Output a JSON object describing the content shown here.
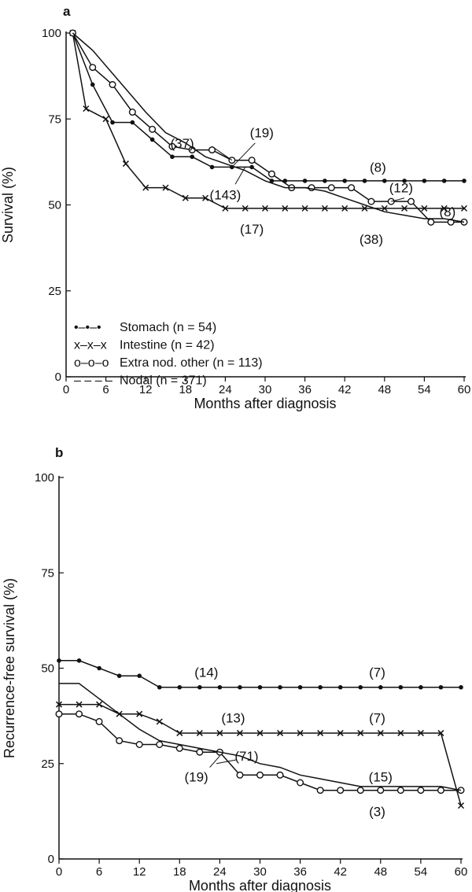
{
  "chart_data": [
    {
      "type": "line",
      "panel_label": "a",
      "xlabel": "Months after diagnosis",
      "ylabel": "Survival (%)",
      "xlim": [
        0,
        60
      ],
      "ylim": [
        0,
        100
      ],
      "xticks": [
        0,
        6,
        12,
        18,
        24,
        30,
        36,
        42,
        48,
        54,
        60
      ],
      "xtick_labels": [
        "0",
        "6",
        "12",
        "18",
        "24",
        "30",
        "36",
        "42",
        "48",
        "54",
        "60"
      ],
      "yticks": [
        0,
        25,
        50,
        75,
        100
      ],
      "ytick_labels": [
        "0",
        "25",
        "50",
        "75",
        "100"
      ],
      "grid": false,
      "legend": {
        "placement": "bottom-left",
        "entries": [
          {
            "marker_text": "•–•–•",
            "series": "Stomach",
            "n_text": "(n = 54)"
          },
          {
            "marker_text": "x–x–x",
            "series": "Intestine",
            "n_text": "(n = 42)"
          },
          {
            "marker_text": "o–o–o",
            "series": "Extra nod. other",
            "n_text": "(n = 113)"
          },
          {
            "marker_text": "– – – –",
            "series": "Nodal",
            "n_text": "(n = 371)"
          }
        ]
      },
      "series": [
        {
          "name": "Stomach",
          "marker": "dot",
          "x": [
            1,
            4,
            7,
            10,
            13,
            16,
            19,
            22,
            25,
            28,
            31,
            33,
            36,
            39,
            42,
            45,
            48,
            51,
            54,
            57,
            60
          ],
          "y": [
            100,
            85,
            74,
            74,
            69,
            64,
            64,
            61,
            61,
            61,
            57,
            57,
            57,
            57,
            57,
            57,
            57,
            57,
            57,
            57,
            57
          ]
        },
        {
          "name": "Intestine",
          "marker": "x",
          "x": [
            1,
            3,
            6,
            9,
            12,
            15,
            18,
            21,
            24,
            27,
            30,
            33,
            36,
            39,
            42,
            45,
            48,
            51,
            54,
            57,
            60
          ],
          "y": [
            100,
            78,
            75,
            62,
            55,
            55,
            52,
            52,
            49,
            49,
            49,
            49,
            49,
            49,
            49,
            49,
            49,
            49,
            49,
            49,
            49
          ]
        },
        {
          "name": "Extra nod. other",
          "marker": "circle",
          "x": [
            1,
            4,
            7,
            10,
            13,
            16,
            19,
            22,
            25,
            28,
            31,
            34,
            37,
            40,
            43,
            46,
            49,
            52,
            55,
            58,
            60
          ],
          "y": [
            100,
            90,
            85,
            77,
            72,
            67,
            66,
            66,
            63,
            63,
            59,
            55,
            55,
            55,
            55,
            51,
            51,
            51,
            45,
            45,
            45
          ]
        },
        {
          "name": "Nodal",
          "marker": "none",
          "x": [
            1,
            4,
            8,
            12,
            15,
            18,
            21,
            24,
            27,
            30,
            33,
            36,
            39,
            42,
            45,
            48,
            51,
            54,
            57,
            60
          ],
          "y": [
            100,
            95,
            86,
            77,
            71,
            68,
            64,
            62,
            60,
            57,
            55,
            55,
            54,
            52,
            50,
            48,
            47,
            46,
            46,
            45
          ]
        }
      ],
      "annotations": [
        {
          "text": "(37)",
          "x": 17.5,
          "y": 68,
          "leader": {
            "from": [
              22,
              67
            ],
            "to": [
              25,
              63
            ]
          }
        },
        {
          "text": "(19)",
          "x": 29.5,
          "y": 71,
          "leader": {
            "from": [
              28.5,
              68
            ],
            "to": [
              25,
              61
            ]
          }
        },
        {
          "text": "(143)",
          "x": 24,
          "y": 53,
          "leader": {
            "from": [
              25.5,
              56
            ],
            "to": [
              27,
              61
            ]
          }
        },
        {
          "text": "(8)",
          "x": 47,
          "y": 61
        },
        {
          "text": "(12)",
          "x": 50.5,
          "y": 55,
          "leader": {
            "from": [
              51,
              52
            ],
            "to": [
              49,
              51
            ]
          }
        },
        {
          "text": "(8)",
          "x": 57.5,
          "y": 48
        },
        {
          "text": "(17)",
          "x": 28,
          "y": 43
        },
        {
          "text": "(38)",
          "x": 46,
          "y": 40
        }
      ]
    },
    {
      "type": "line",
      "panel_label": "b",
      "xlabel": "Months after diagnosis",
      "ylabel": "Recurrence-free survival (%)",
      "xlim": [
        0,
        60
      ],
      "ylim": [
        0,
        100
      ],
      "xticks": [
        0,
        6,
        12,
        18,
        24,
        30,
        36,
        42,
        48,
        54,
        60
      ],
      "xtick_labels": [
        "0",
        "6",
        "12",
        "18",
        "24",
        "30",
        "36",
        "42",
        "48",
        "54",
        "60"
      ],
      "yticks": [
        0,
        25,
        50,
        75,
        100
      ],
      "ytick_labels": [
        "0",
        "25",
        "50",
        "75",
        "100"
      ],
      "grid": false,
      "series": [
        {
          "name": "Stomach",
          "marker": "dot",
          "x": [
            0,
            3,
            6,
            9,
            12,
            15,
            18,
            21,
            24,
            27,
            30,
            33,
            36,
            39,
            42,
            45,
            48,
            51,
            54,
            57,
            60
          ],
          "y": [
            52,
            52,
            50,
            48,
            48,
            45,
            45,
            45,
            45,
            45,
            45,
            45,
            45,
            45,
            45,
            45,
            45,
            45,
            45,
            45,
            45
          ]
        },
        {
          "name": "Intestine",
          "marker": "x",
          "x": [
            0,
            3,
            6,
            9,
            12,
            15,
            18,
            21,
            24,
            27,
            30,
            33,
            36,
            39,
            42,
            45,
            48,
            51,
            54,
            57,
            60
          ],
          "y": [
            40.5,
            40.5,
            40.5,
            38,
            38,
            36,
            33,
            33,
            33,
            33,
            33,
            33,
            33,
            33,
            33,
            33,
            33,
            33,
            33,
            33,
            14
          ]
        },
        {
          "name": "Extra nod. other",
          "marker": "circle",
          "x": [
            0,
            3,
            6,
            9,
            12,
            15,
            18,
            21,
            24,
            27,
            30,
            33,
            36,
            39,
            42,
            45,
            48,
            51,
            54,
            57,
            60
          ],
          "y": [
            38,
            38,
            36,
            31,
            30,
            30,
            29,
            28,
            28,
            22,
            22,
            22,
            20,
            18,
            18,
            18,
            18,
            18,
            18,
            18,
            18
          ]
        },
        {
          "name": "Nodal",
          "marker": "none",
          "x": [
            0,
            3,
            6,
            9,
            12,
            15,
            18,
            21,
            24,
            27,
            30,
            33,
            36,
            39,
            42,
            45,
            48,
            51,
            54,
            57,
            60
          ],
          "y": [
            46,
            46,
            42,
            38,
            34,
            31,
            30,
            29,
            28,
            27,
            25,
            24,
            22,
            21,
            20,
            19,
            19,
            19,
            19,
            19,
            18
          ]
        }
      ],
      "annotations": [
        {
          "text": "(14)",
          "x": 22,
          "y": 49
        },
        {
          "text": "(7)",
          "x": 47.5,
          "y": 49
        },
        {
          "text": "(13)",
          "x": 26,
          "y": 37
        },
        {
          "text": "(7)",
          "x": 47.5,
          "y": 37
        },
        {
          "text": "(71)",
          "x": 28,
          "y": 27,
          "leader": {
            "from": [
              26.5,
              26
            ],
            "to": [
              23.5,
              25
            ]
          }
        },
        {
          "text": "(19)",
          "x": 20.5,
          "y": 21.5,
          "leader": {
            "from": [
              22.5,
              24
            ],
            "to": [
              24,
              27
            ]
          }
        },
        {
          "text": "(15)",
          "x": 48,
          "y": 21.5
        },
        {
          "text": "(3)",
          "x": 47.5,
          "y": 12.5
        }
      ]
    }
  ]
}
